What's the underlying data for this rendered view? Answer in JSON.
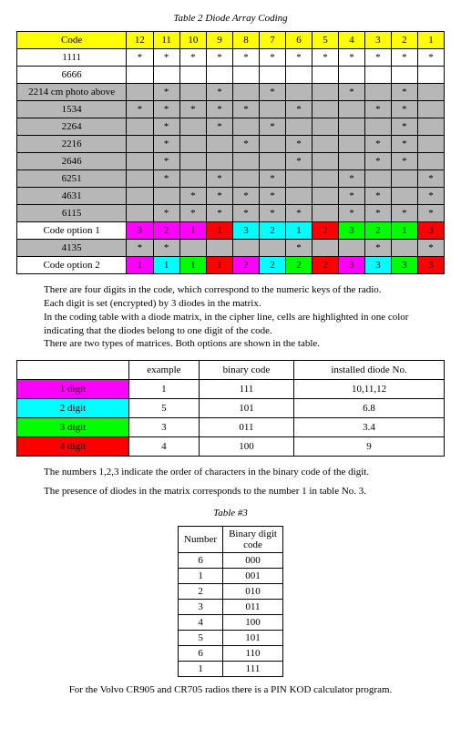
{
  "colors": {
    "yellow": "#ffff00",
    "grey": "#b7b7b7",
    "magenta": "#ff00ff",
    "cyan": "#00ffff",
    "green": "#00ff00",
    "red": "#ff0000",
    "white": "#ffffff"
  },
  "table2": {
    "title": "Table 2 Diode Array Coding",
    "head_label": "Code",
    "head_nums": [
      "12",
      "11",
      "10",
      "9",
      "8",
      "7",
      "6",
      "5",
      "4",
      "3",
      "2",
      "1"
    ],
    "rows": [
      {
        "label": "1111",
        "cells": [
          "*",
          "*",
          "*",
          "*",
          "*",
          "*",
          "*",
          "*",
          "*",
          "*",
          "*",
          "*"
        ],
        "colors": [
          "w",
          "w",
          "w",
          "w",
          "w",
          "w",
          "w",
          "w",
          "w",
          "w",
          "w",
          "w"
        ],
        "label_color": "w"
      },
      {
        "label": "6666",
        "cells": [
          "",
          "",
          "",
          "",
          "",
          "",
          "",
          "",
          "",
          "",
          "",
          ""
        ],
        "colors": [
          "w",
          "w",
          "w",
          "w",
          "w",
          "w",
          "w",
          "w",
          "w",
          "w",
          "w",
          "w"
        ],
        "label_color": "w"
      },
      {
        "label": "2214 cm photo above",
        "cells": [
          "",
          "*",
          "",
          "*",
          "",
          "*",
          "",
          "",
          "*",
          "",
          "*",
          ""
        ],
        "colors": [
          "g",
          "g",
          "g",
          "g",
          "g",
          "g",
          "g",
          "g",
          "g",
          "g",
          "g",
          "g"
        ],
        "label_color": "g"
      },
      {
        "label": "1534",
        "cells": [
          "*",
          "*",
          "*",
          "*",
          "*",
          "",
          "*",
          "",
          "",
          "*",
          "*",
          ""
        ],
        "colors": [
          "g",
          "g",
          "g",
          "g",
          "g",
          "g",
          "g",
          "g",
          "g",
          "g",
          "g",
          "g"
        ],
        "label_color": "g"
      },
      {
        "label": "2264",
        "cells": [
          "",
          "*",
          "",
          "*",
          "",
          "*",
          "",
          "",
          "",
          "",
          "*",
          ""
        ],
        "colors": [
          "g",
          "g",
          "g",
          "g",
          "g",
          "g",
          "g",
          "g",
          "g",
          "g",
          "g",
          "g"
        ],
        "label_color": "g"
      },
      {
        "label": "2216",
        "cells": [
          "",
          "*",
          "",
          "",
          "*",
          "",
          "*",
          "",
          "",
          "*",
          "*",
          ""
        ],
        "colors": [
          "g",
          "g",
          "g",
          "g",
          "g",
          "g",
          "g",
          "g",
          "g",
          "g",
          "g",
          "g"
        ],
        "label_color": "g"
      },
      {
        "label": "2646",
        "cells": [
          "",
          "*",
          "",
          "",
          "",
          "",
          "*",
          "",
          "",
          "*",
          "*",
          ""
        ],
        "colors": [
          "g",
          "g",
          "g",
          "g",
          "g",
          "g",
          "g",
          "g",
          "g",
          "g",
          "g",
          "g"
        ],
        "label_color": "g"
      },
      {
        "label": "6251",
        "cells": [
          "",
          "*",
          "",
          "*",
          "",
          "*",
          "",
          "",
          "*",
          "",
          "",
          "*"
        ],
        "colors": [
          "g",
          "g",
          "g",
          "g",
          "g",
          "g",
          "g",
          "g",
          "g",
          "g",
          "g",
          "g"
        ],
        "label_color": "g"
      },
      {
        "label": "4631",
        "cells": [
          "",
          "",
          "*",
          "*",
          "*",
          "*",
          "",
          "",
          "*",
          "*",
          "",
          "*"
        ],
        "colors": [
          "g",
          "g",
          "g",
          "g",
          "g",
          "g",
          "g",
          "g",
          "g",
          "g",
          "g",
          "g"
        ],
        "label_color": "g"
      },
      {
        "label": "6115",
        "cells": [
          "",
          "*",
          "*",
          "*",
          "*",
          "*",
          "*",
          "",
          "*",
          "*",
          "*",
          "*"
        ],
        "colors": [
          "g",
          "g",
          "g",
          "g",
          "g",
          "g",
          "g",
          "g",
          "g",
          "g",
          "g",
          "g"
        ],
        "label_color": "g"
      },
      {
        "label": "Code option 1",
        "cells": [
          "3",
          "2",
          "1",
          "1",
          "3",
          "2",
          "1",
          "2",
          "3",
          "2",
          "1",
          "3"
        ],
        "colors": [
          "m",
          "m",
          "m",
          "r",
          "c",
          "c",
          "c",
          "r",
          "gr",
          "gr",
          "gr",
          "r"
        ],
        "label_color": "w"
      },
      {
        "label": "4135",
        "cells": [
          "*",
          "*",
          "",
          "",
          "",
          "",
          "*",
          "",
          "",
          "*",
          "",
          "*"
        ],
        "colors": [
          "g",
          "g",
          "g",
          "g",
          "g",
          "g",
          "g",
          "g",
          "g",
          "g",
          "g",
          "g"
        ],
        "label_color": "g"
      },
      {
        "label": "Code option 2",
        "cells": [
          "1",
          "1",
          "1",
          "1",
          "2",
          "2",
          "2",
          "2",
          "3",
          "3",
          "3",
          "3"
        ],
        "colors": [
          "m",
          "c",
          "gr",
          "r",
          "m",
          "c",
          "gr",
          "r",
          "m",
          "c",
          "gr",
          "r"
        ],
        "label_color": "w"
      }
    ]
  },
  "para1": [
    "There are four digits in the code, which correspond to the numeric keys of the radio.",
    "Each digit is set (encrypted) by 3 diodes in the matrix.",
    "In the coding table with a diode matrix, in the cipher line, cells are highlighted in one color indicating that the diodes belong to one digit of the code.",
    "There are two types of matrices. Both options are shown in the table."
  ],
  "digits": {
    "headers": [
      "",
      "example",
      "binary code",
      "installed diode No."
    ],
    "rows": [
      {
        "label": "1 digit",
        "color": "m",
        "example": "1",
        "binary": "111",
        "diode": "10,11,12"
      },
      {
        "label": "2 digit",
        "color": "c",
        "example": "5",
        "binary": "101",
        "diode": "6.8"
      },
      {
        "label": "3 digit",
        "color": "gr",
        "example": "3",
        "binary": "011",
        "diode": "3.4"
      },
      {
        "label": "4 digit",
        "color": "r",
        "example": "4",
        "binary": "100",
        "diode": "9"
      }
    ]
  },
  "para2": [
    "The numbers 1,2,3 indicate the order of characters in the binary code of the digit.",
    "The presence of diodes in the matrix corresponds to the number 1 in table No. 3."
  ],
  "table3": {
    "title": "Table #3",
    "headers": [
      "Number",
      "Binary digit code"
    ],
    "rows": [
      [
        "6",
        "000"
      ],
      [
        "1",
        "001"
      ],
      [
        "2",
        "010"
      ],
      [
        "3",
        "011"
      ],
      [
        "4",
        "100"
      ],
      [
        "5",
        "101"
      ],
      [
        "6",
        "110"
      ],
      [
        "1",
        "111"
      ]
    ]
  },
  "footer": "For the Volvo CR905 and CR705 radios there is a PIN KOD calculator program."
}
